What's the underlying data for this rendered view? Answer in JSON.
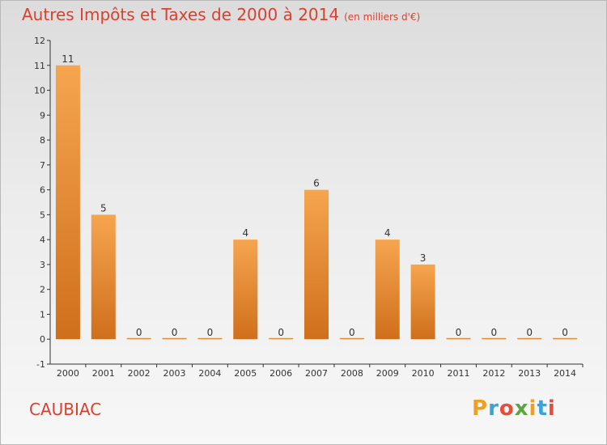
{
  "header": {
    "title": "Autres Impôts et Taxes de 2000 à 2014",
    "subtitle": "(en milliers d'€)"
  },
  "footer": {
    "place": "CAUBIAC",
    "logo": "Proxiti"
  },
  "colors": {
    "title": "#d9412f",
    "bar_light": "#f6a54f",
    "bar_dark": "#cf6f1b",
    "logo_letters": [
      "#f0a020",
      "#3aa3d8",
      "#e84d3c",
      "#5aa63c",
      "#f0a020",
      "#3aa3d8",
      "#e84d3c"
    ]
  },
  "chart_data": {
    "type": "bar",
    "title": "Autres Impôts et Taxes de 2000 à 2014",
    "subtitle": "(en milliers d'€)",
    "xlabel": "",
    "ylabel": "",
    "categories": [
      "2000",
      "2001",
      "2002",
      "2003",
      "2004",
      "2005",
      "2006",
      "2007",
      "2008",
      "2009",
      "2010",
      "2011",
      "2012",
      "2013",
      "2014"
    ],
    "values": [
      11,
      5,
      0,
      0,
      0,
      4,
      0,
      6,
      0,
      4,
      3,
      0,
      0,
      0,
      0
    ],
    "ylim": [
      -1,
      12
    ],
    "yticks": [
      -1,
      0,
      1,
      2,
      3,
      4,
      5,
      6,
      7,
      8,
      9,
      10,
      11,
      12
    ],
    "grid": false,
    "legend": "none"
  }
}
